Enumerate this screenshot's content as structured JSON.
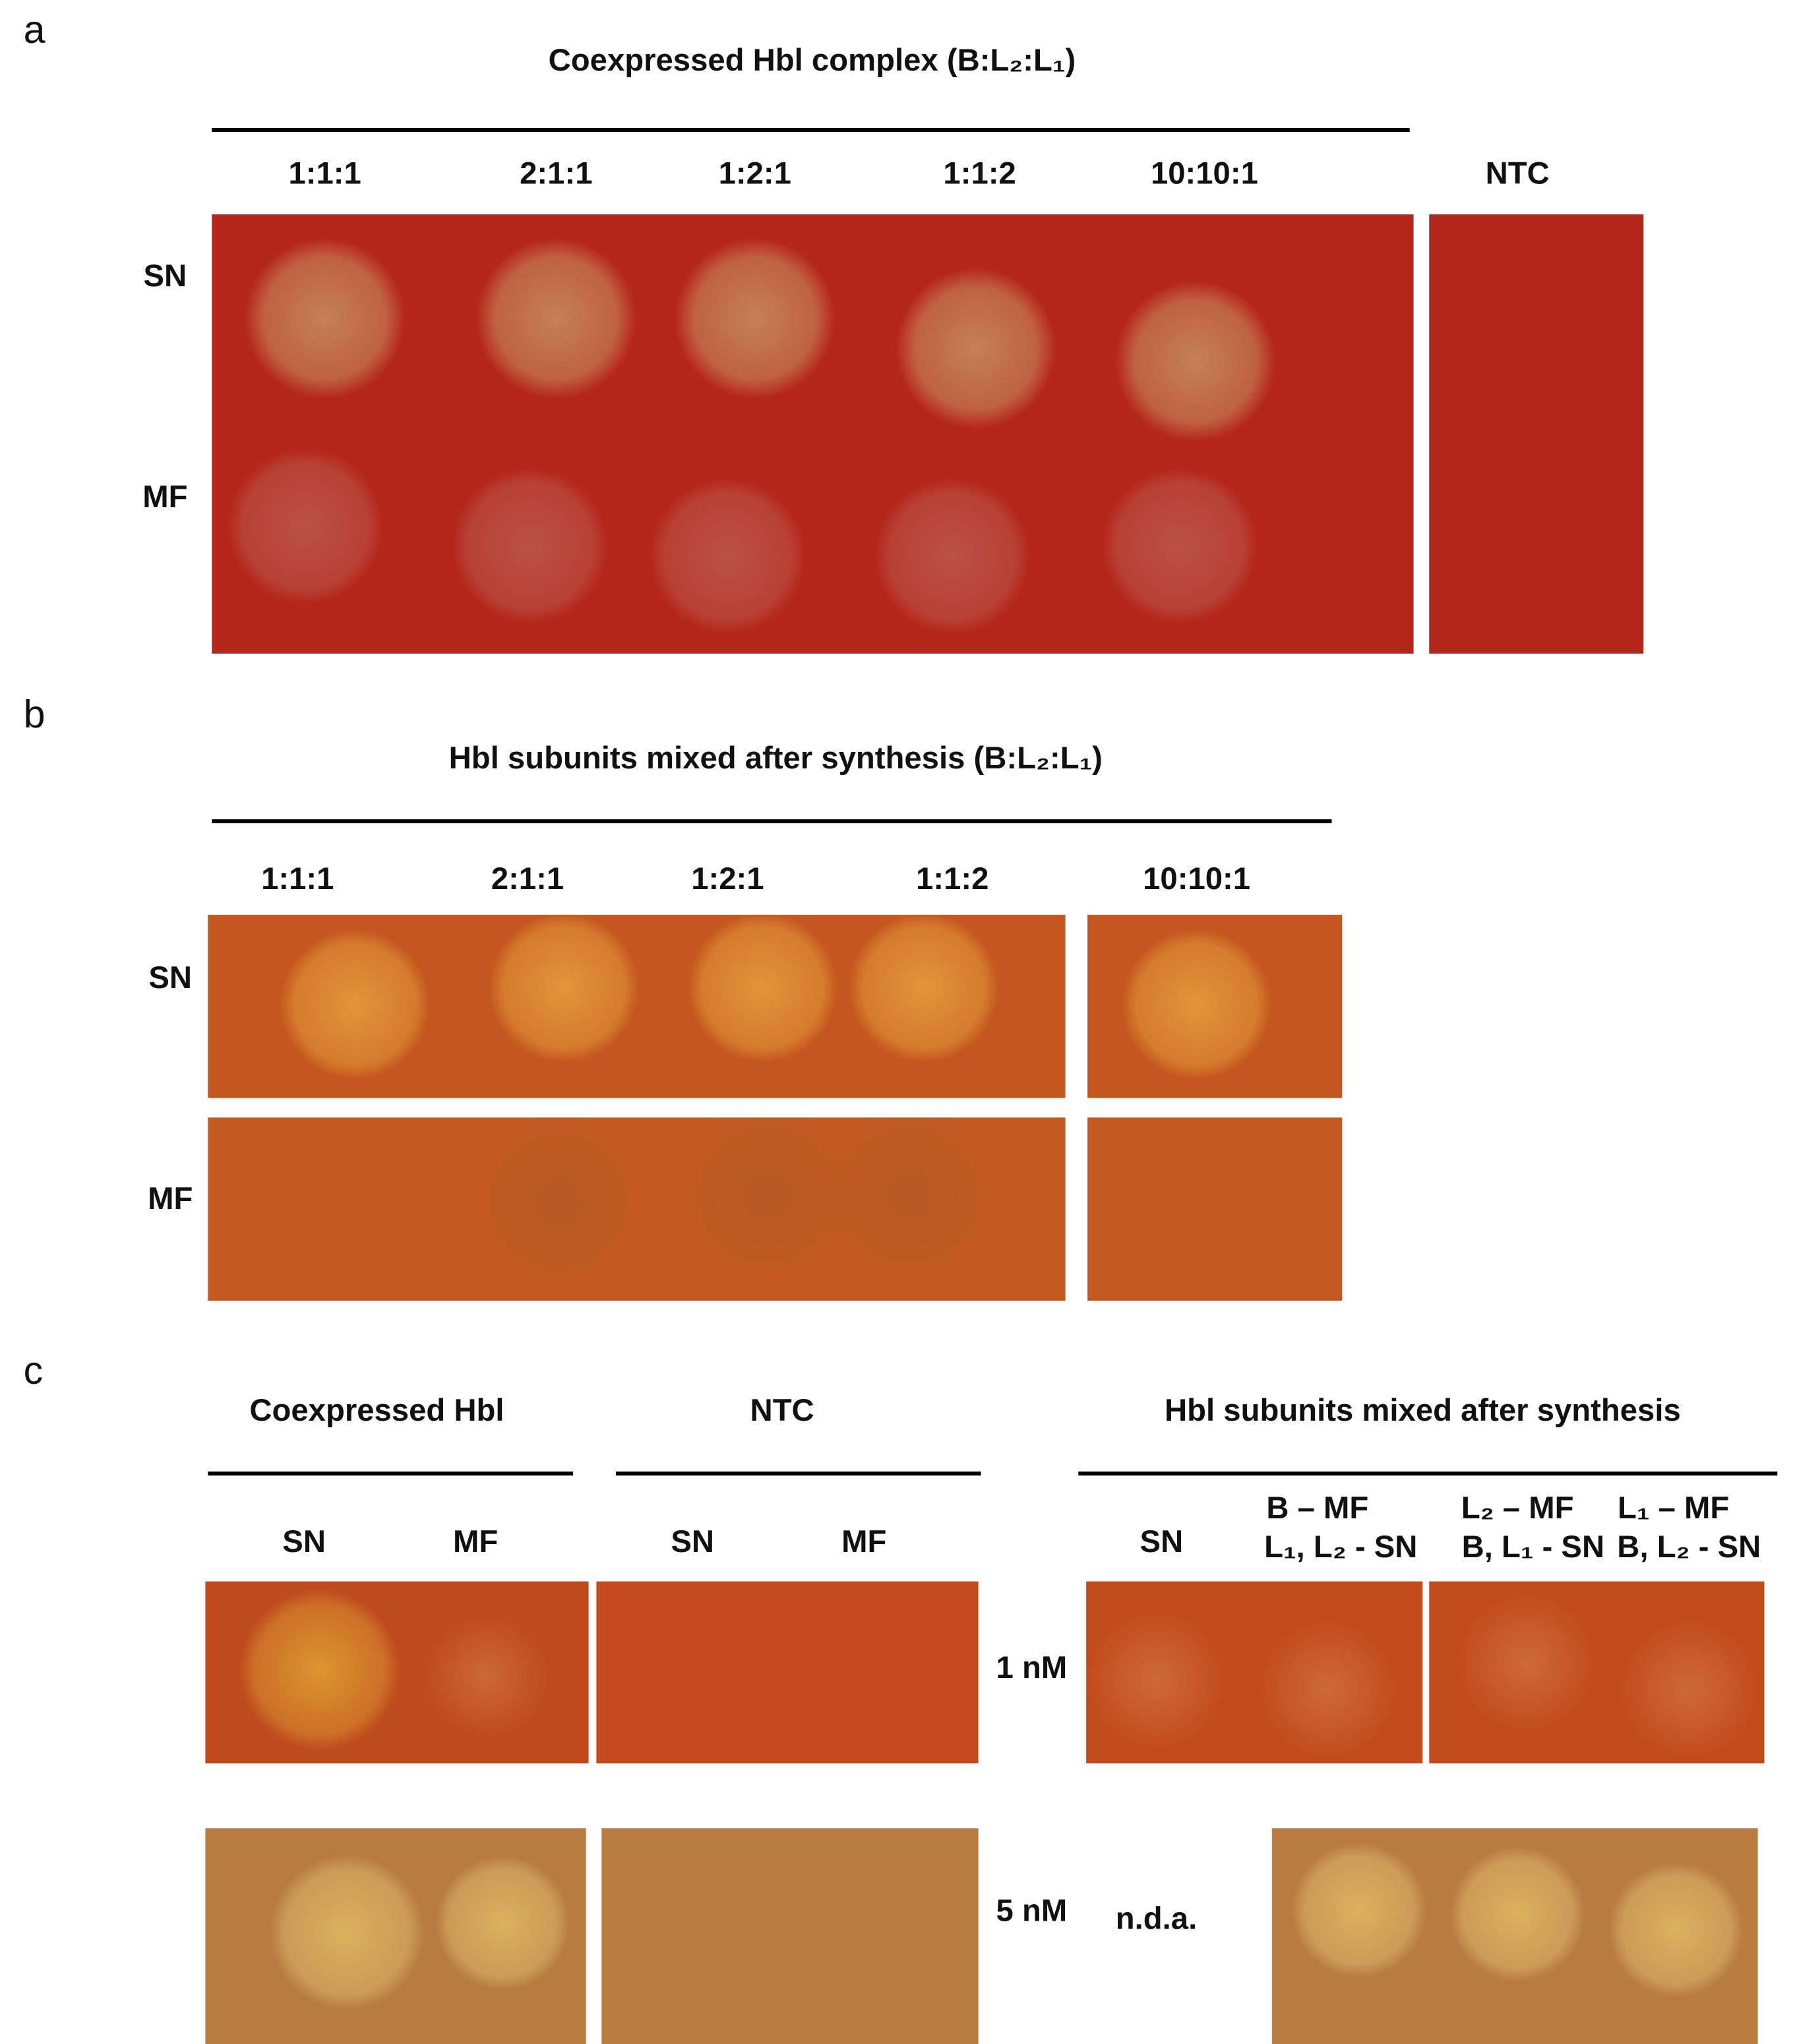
{
  "panel_a": {
    "label": "a",
    "title": "Coexpressed Hbl complex (B:L₂:L₁)",
    "columns": [
      "1:1:1",
      "2:1:1",
      "1:2:1",
      "1:1:2",
      "10:10:1"
    ],
    "control": "NTC",
    "rows": [
      "SN",
      "MF"
    ]
  },
  "panel_b": {
    "label": "b",
    "title": "Hbl subunits mixed after synthesis (B:L₂:L₁)",
    "columns": [
      "1:1:1",
      "2:1:1",
      "1:2:1",
      "1:1:2",
      "10:10:1"
    ],
    "rows": [
      "SN",
      "MF"
    ]
  },
  "panel_c": {
    "label": "c",
    "groups": [
      "Coexpressed Hbl",
      "NTC",
      "Hbl subunits mixed after synthesis"
    ],
    "coexpressed_columns": [
      "SN",
      "MF"
    ],
    "ntc_columns": [
      "SN",
      "MF"
    ],
    "mixed_columns": [
      [
        "SN"
      ],
      [
        "B – MF",
        "L₁, L₂ - SN"
      ],
      [
        "L₂ – MF",
        "B, L₁ - SN"
      ],
      [
        "L₁ – MF",
        "B, L₂ - SN"
      ]
    ],
    "concentrations": [
      "1 nM",
      "5 nM"
    ],
    "no_data": "n.d.a."
  }
}
